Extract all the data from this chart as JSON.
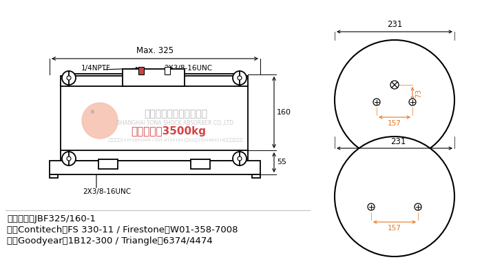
{
  "bg_color": "#ffffff",
  "line_color": "#000000",
  "watermark_text1": "上海松夏减震器有限公司",
  "watermark_text2": "SHANGHAI SONA SHOCK ABSORBER CO.,LTD",
  "watermark_text3": "联系方式：15201855009 / 021-61551911，QQ：1516483116，微信：回复加",
  "label_max_load": "最大承载：3500kg",
  "label_model": "产品型号：JBF325/160-1",
  "label_contitech": "对应Contitech：FS 330-11 / Firestone：W01-358-7008",
  "label_goodyear": "对应Goodyear：1B12-300 / Triangle：6374/4474",
  "dim_325": "Max. 325",
  "dim_160": "160",
  "dim_55": "55",
  "dim_231": "231",
  "dim_157": "157",
  "dim_73": "73",
  "label_14nptf": "1/4NPTF",
  "label_2x38_top": "2X3/8-16UNC",
  "label_2x38_bot": "2X3/8-16UNC",
  "orange_color": "#e87722",
  "light_pink": "#f5c0b0",
  "red_port": "#cc4444"
}
